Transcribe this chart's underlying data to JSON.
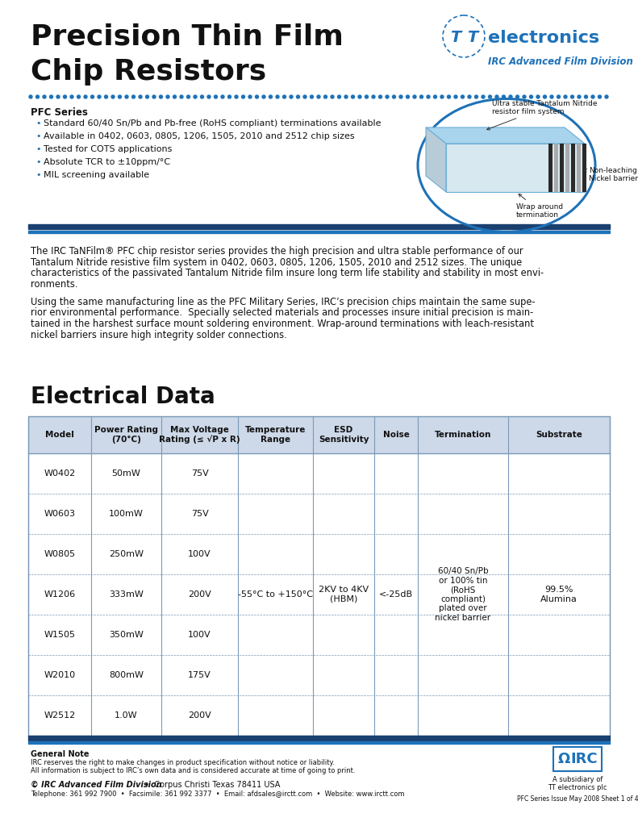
{
  "title_line1": "Precision Thin Film",
  "title_line2": "Chip Resistors",
  "section_title": "PFC Series",
  "bullets": [
    "Standard 60/40 Sn/Pb and Pb-free (RoHS compliant) terminations available",
    "Available in 0402, 0603, 0805, 1206, 1505, 2010 and 2512 chip sizes",
    "Tested for COTS applications",
    "Absolute TCR to ±10ppm/°C",
    "MIL screening available"
  ],
  "body_text1_lines": [
    "The IRC TaNFilm® PFC chip resistor series provides the high precision and ultra stable performance of our",
    "Tantalum Nitride resistive film system in 0402, 0603, 0805, 1206, 1505, 2010 and 2512 sizes. The unique",
    "characteristics of the passivated Tantalum Nitride film insure long term life stability and stability in most envi-",
    "ronments."
  ],
  "body_text2_lines": [
    "Using the same manufacturing line as the PFC Military Series, IRC’s precision chips maintain the same supe-",
    "rior environmental performance.  Specially selected materials and processes insure initial precision is main-",
    "tained in the harshest surface mount soldering environment. Wrap-around terminations with leach-resistant",
    "nickel barriers insure high integrity solder connections."
  ],
  "elec_title": "Electrical Data",
  "table_col_lefts": [
    35,
    113,
    200,
    295,
    388,
    464,
    518,
    630,
    756
  ],
  "table_headers": [
    "Model",
    "Power Rating\n(70°C)",
    "Max Voltage\nRating (≤ √P x R)",
    "Temperature\nRange",
    "ESD\nSensitivity",
    "Noise",
    "Termination",
    "Substrate"
  ],
  "table_rows_model": [
    "W0402",
    "W0603",
    "W0805",
    "W1206",
    "W1505",
    "W2010",
    "W2512"
  ],
  "table_rows_power": [
    "50mW",
    "100mW",
    "250mW",
    "333mW",
    "350mW",
    "800mW",
    "1.0W"
  ],
  "table_rows_voltage": [
    "75V",
    "75V",
    "100V",
    "200V",
    "100V",
    "175V",
    "200V"
  ],
  "merged_temp": "-55°C to +150°C",
  "merged_esd": "2KV to 4KV\n(HBM)",
  "merged_noise": "<-25dB",
  "merged_term": "60/40 Sn/Pb\nor 100% tin\n(RoHS\ncompliant)\nplated over\nnickel barrier",
  "merged_sub": "99.5%\nAlumina",
  "footer_note_bold": "General Note",
  "footer_note1": "IRC reserves the right to make changes in product specification without notice or liability.",
  "footer_note2": "All information is subject to IRC’s own data and is considered accurate at time of going to print.",
  "footer_company_bold": "© IRC Advanced Film Division",
  "footer_company_addr": "  •  Corpus Christi Texas 78411 USA",
  "footer_tel": "Telephone: 361 992 7900  •  Facsimile: 361 992 3377  •  Email: afdsales@irctt.com  •  Website: www.irctt.com",
  "footer_right1": "A subsidiary of",
  "footer_right2": "TT electronics plc",
  "footer_right3": "PFC Series Issue May 2008 Sheet 1 of 4",
  "blue": "#1e72b8",
  "dark_blue": "#1a4f7a",
  "mid_blue": "#2e86c1"
}
